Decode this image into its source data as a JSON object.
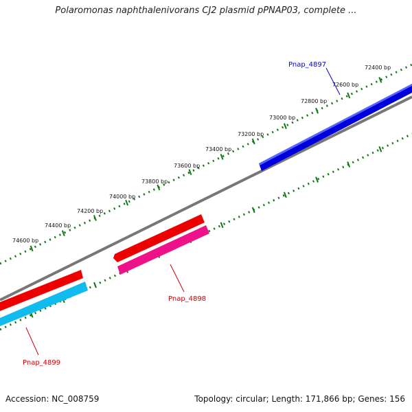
{
  "title": "Polaromonas naphthalenivorans CJ2 plasmid pPNAP03, complete ...",
  "footer": {
    "accession": "Accession: NC_008759",
    "summary": "Topology: circular; Length: 171,866 bp; Genes: 156"
  },
  "ruler": {
    "labels": [
      "72400 bp",
      "72600 bp",
      "72800 bp",
      "73000 bp",
      "73200 bp",
      "73400 bp",
      "73600 bp",
      "73800 bp",
      "74000 bp",
      "74200 bp",
      "74400 bp",
      "74600 bp"
    ]
  },
  "genes": [
    {
      "name": "Pnap_4897",
      "color": "#0000dd",
      "strand": "forward"
    },
    {
      "name": "Pnap_4898",
      "color": "#ee0000",
      "strand": "reverse",
      "feature": "gene"
    },
    {
      "name": "Pnap_4898",
      "color": "#ee1188",
      "strand": "reverse",
      "feature": "CDS"
    },
    {
      "name": "Pnap_4899",
      "color": "#ee0000",
      "strand": "reverse",
      "feature": "gene"
    },
    {
      "name": "Pnap_4899",
      "color": "#11bbee",
      "strand": "reverse",
      "feature": "CDS"
    }
  ],
  "colors": {
    "backbone": "#777777",
    "ticks": "#117711",
    "label_forward": "#0000cc",
    "label_reverse": "#cc0000"
  }
}
